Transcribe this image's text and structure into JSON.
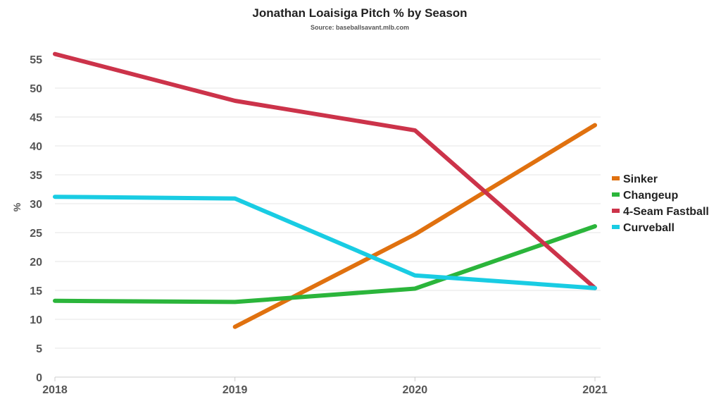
{
  "chart_data": {
    "type": "line",
    "title": "Jonathan Loaisiga Pitch % by Season",
    "subtitle": "Source: baseballsavant.mlb.com",
    "xlabel": "",
    "ylabel": "%",
    "x": [
      "2018",
      "2019",
      "2020",
      "2021"
    ],
    "ylim": [
      0,
      55
    ],
    "yticks": [
      0,
      5,
      10,
      15,
      20,
      25,
      30,
      35,
      40,
      45,
      50,
      55
    ],
    "grid": true,
    "legend_position": "right",
    "series": [
      {
        "name": "Sinker",
        "color": "#e0710f",
        "values": [
          null,
          8.7,
          24.7,
          43.6
        ]
      },
      {
        "name": "Changeup",
        "color": "#2bb53b",
        "values": [
          13.2,
          13.0,
          15.3,
          26.1
        ]
      },
      {
        "name": "4-Seam Fastball",
        "color": "#cc334a",
        "values": [
          55.9,
          47.8,
          42.7,
          15.4
        ]
      },
      {
        "name": "Curveball",
        "color": "#19cce3",
        "values": [
          31.2,
          30.9,
          17.6,
          15.4
        ]
      }
    ]
  }
}
